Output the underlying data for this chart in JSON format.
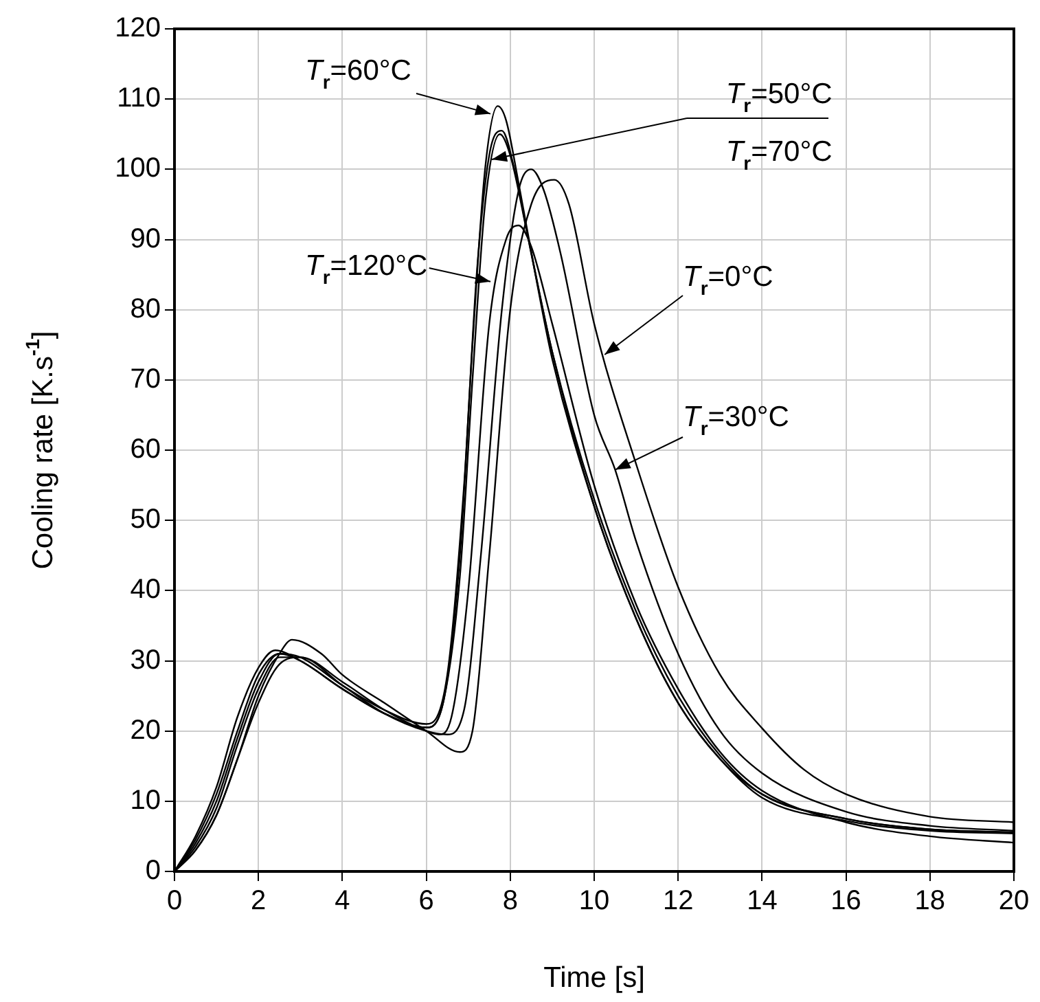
{
  "chart_data": {
    "type": "line",
    "xlabel": "Time [s]",
    "ylabel": "Cooling rate [K.s$^{-1}$]",
    "xlim": [
      0,
      20
    ],
    "xticks": [
      0,
      2,
      4,
      6,
      8,
      10,
      12,
      14,
      16,
      18,
      20
    ],
    "ylim": [
      0,
      120
    ],
    "yticks": [
      0,
      10,
      20,
      30,
      40,
      50,
      60,
      70,
      80,
      90,
      100,
      110,
      120
    ],
    "grid": true,
    "legend": false,
    "marker": "none",
    "line_style": "solid",
    "annotations": [
      {
        "text": "T$_{r}$=60°C",
        "x": 7.53,
        "y": 107.9
      },
      "T$_{r}$=50°C",
      "T$_{r}$=70°C",
      {
        "text": "T$_{r}$=120°C",
        "x": 7.53,
        "y": 84
      },
      {
        "text": "T$_{r}$=30°C",
        "x": 10.5,
        "y": 57.2
      },
      {
        "text": "T$_{r}$=0°C",
        "x": 10.25,
        "y": 73.6
      }
    ],
    "series": [
      {
        "color": "#000000",
        "x": [
          0,
          0.5,
          1,
          1.5,
          2,
          2.4,
          3,
          4,
          5,
          6,
          6.4,
          6.8,
          7.1,
          7.4,
          7.7,
          7.9,
          8.2,
          8.6,
          9,
          10,
          11,
          12,
          13,
          14,
          16,
          18,
          20
        ],
        "values": [
          0,
          5,
          12,
          22,
          29,
          31.5,
          30,
          26,
          22.5,
          20.5,
          24,
          45,
          75,
          100,
          109,
          107,
          98,
          85,
          73,
          52,
          36,
          24,
          16,
          11,
          7.5,
          6,
          5.5
        ]
      },
      {
        "color": "#000000",
        "x": [
          0,
          0.5,
          1,
          1.5,
          2,
          2.5,
          3,
          4,
          5,
          6,
          6.5,
          6.9,
          7.2,
          7.5,
          7.8,
          8.1,
          8.5,
          9,
          10,
          11,
          12,
          13,
          14,
          16,
          18,
          20
        ],
        "values": [
          0,
          4,
          10,
          19,
          27,
          31,
          30.5,
          26.5,
          23,
          21,
          28,
          55,
          85,
          102,
          105.5,
          100,
          88,
          74,
          53,
          37,
          25,
          16.5,
          11,
          7.5,
          6,
          5.6
        ]
      },
      {
        "color": "#000000",
        "x": [
          0,
          0.5,
          1,
          1.5,
          2,
          2.5,
          3,
          4,
          5,
          6,
          6.4,
          6.8,
          7.1,
          7.4,
          7.75,
          8,
          8.4,
          9,
          10,
          11,
          12,
          13,
          14,
          16,
          18,
          20
        ],
        "values": [
          0,
          4.5,
          11,
          20,
          28,
          31,
          30,
          26,
          22.5,
          20.5,
          24,
          42,
          70,
          95,
          105,
          102,
          91,
          74,
          52,
          36,
          24,
          16,
          10.5,
          7.2,
          5.8,
          5.4
        ]
      },
      {
        "color": "#000000",
        "x": [
          0,
          0.5,
          1,
          1.5,
          2,
          2.5,
          3,
          4,
          5,
          6,
          6.3,
          6.6,
          7,
          7.5,
          7.9,
          8.2,
          8.5,
          9,
          10,
          11,
          12,
          13,
          14,
          16,
          18,
          20
        ],
        "values": [
          0,
          3,
          8,
          16,
          24,
          29.5,
          30.5,
          27,
          23,
          20,
          19.5,
          22,
          40,
          78,
          90,
          92,
          89,
          78,
          55,
          38,
          26,
          17,
          11.5,
          7,
          5,
          4.1
        ]
      },
      {
        "color": "#000000",
        "x": [
          0,
          0.5,
          1,
          1.5,
          2,
          2.5,
          3,
          4,
          5,
          6,
          6.5,
          6.9,
          7.3,
          7.8,
          8.2,
          8.5,
          8.8,
          9.2,
          10,
          10.5,
          11,
          12,
          13,
          14,
          16,
          18,
          20
        ],
        "values": [
          0,
          3.5,
          9,
          18,
          26,
          30.5,
          30.5,
          26.5,
          22.5,
          20,
          19.5,
          23,
          45,
          80,
          97,
          100,
          97,
          88,
          65,
          57.2,
          47,
          31,
          20,
          14,
          8.5,
          6.5,
          5.8
        ]
      },
      {
        "color": "#000000",
        "x": [
          0,
          0.5,
          1,
          1.5,
          2,
          2.5,
          2.8,
          3.5,
          4,
          5,
          6,
          6.8,
          7.1,
          7.5,
          8,
          8.5,
          9.05,
          9.4,
          10,
          11,
          12,
          13,
          14,
          15,
          16,
          18,
          20
        ],
        "values": [
          0,
          3,
          8,
          16,
          25,
          31,
          33,
          31,
          28,
          24,
          20,
          17,
          20,
          45,
          80,
          95,
          98.5,
          95,
          78,
          58,
          40.5,
          28,
          20.4,
          14.5,
          11,
          7.8,
          7
        ]
      }
    ]
  }
}
